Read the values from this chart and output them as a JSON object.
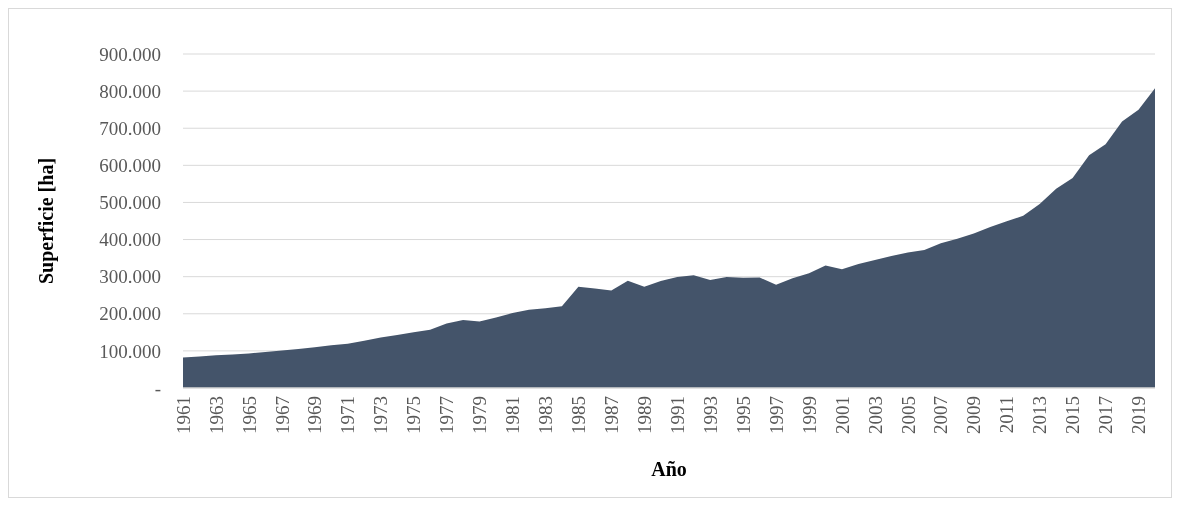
{
  "chart_data": {
    "type": "area",
    "xlabel": "Año",
    "ylabel": "Superficie [ha]",
    "categories": [
      "1961",
      null,
      "1963",
      null,
      "1965",
      null,
      "1967",
      null,
      "1969",
      null,
      "1971",
      null,
      "1973",
      null,
      "1975",
      null,
      "1977",
      null,
      "1979",
      null,
      "1981",
      null,
      "1983",
      null,
      "1985",
      null,
      "1987",
      null,
      "1989",
      null,
      "1991",
      null,
      "1993",
      null,
      "1995",
      null,
      "1997",
      null,
      "1999",
      null,
      "2001",
      null,
      "2003",
      null,
      "2005",
      null,
      "2007",
      null,
      "2009",
      null,
      "2011",
      null,
      "2013",
      null,
      "2015",
      null,
      "2017",
      null,
      "2019",
      null
    ],
    "series": [
      {
        "color": "#44546a",
        "values": [
          82000,
          85000,
          88000,
          90000,
          93000,
          97000,
          101000,
          105000,
          110000,
          115000,
          119000,
          127000,
          136000,
          143000,
          150000,
          157000,
          174000,
          183000,
          179000,
          190000,
          202000,
          211000,
          215000,
          220000,
          273000,
          268000,
          263000,
          289000,
          273000,
          288000,
          299000,
          304000,
          291000,
          299000,
          297000,
          298000,
          278000,
          296000,
          309000,
          330000,
          320000,
          334000,
          345000,
          356000,
          365000,
          372000,
          390000,
          402000,
          416000,
          434000,
          449000,
          464000,
          496000,
          537000,
          566000,
          627000,
          657000,
          718000,
          750000,
          808000
        ]
      }
    ],
    "ylim": [
      0,
      900000
    ],
    "yticks": [
      {
        "value": 0,
        "label": "-"
      },
      {
        "value": 100000,
        "label": "100.000"
      },
      {
        "value": 200000,
        "label": "200.000"
      },
      {
        "value": 300000,
        "label": "300.000"
      },
      {
        "value": 400000,
        "label": "400.000"
      },
      {
        "value": 500000,
        "label": "500.000"
      },
      {
        "value": 600000,
        "label": "600.000"
      },
      {
        "value": 700000,
        "label": "700.000"
      },
      {
        "value": 800000,
        "label": "800.000"
      },
      {
        "value": 900000,
        "label": "900.000"
      }
    ],
    "grid": "y"
  }
}
